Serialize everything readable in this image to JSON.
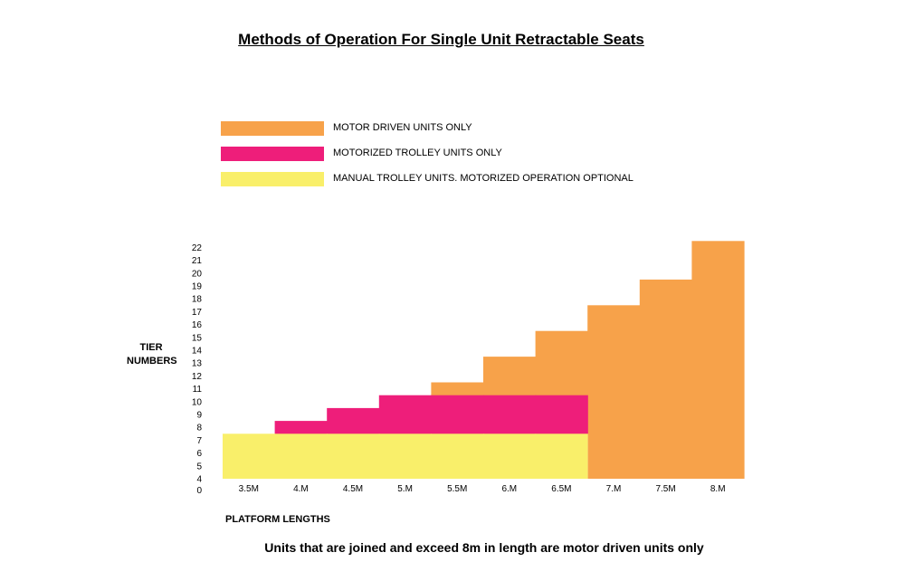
{
  "title": "Methods of Operation For Single Unit Retractable Seats",
  "legend": [
    {
      "label": "MOTOR DRIVEN UNITS ONLY",
      "color": "#F7A24A"
    },
    {
      "label": "MOTORIZED TROLLEY UNITS ONLY",
      "color": "#EE1E7A"
    },
    {
      "label": "MANUAL TROLLEY UNITS. MOTORIZED OPERATION OPTIONAL",
      "color": "#F9EF6A"
    }
  ],
  "footnote": "Units that are joined and exceed 8m in length are motor driven units only",
  "chart_data": {
    "type": "bar",
    "xlabel": "PLATFORM LENGTHS",
    "ylabel": "TIER NUMBERS",
    "ylim": [
      0,
      22
    ],
    "yticks": [
      "0",
      "4",
      "5",
      "6",
      "7",
      "8",
      "9",
      "10",
      "11",
      "12",
      "13",
      "14",
      "15",
      "16",
      "17",
      "18",
      "19",
      "20",
      "21",
      "22"
    ],
    "categories": [
      "3.5M",
      "4.M",
      "4.5M",
      "5.M",
      "5.5M",
      "6.M",
      "6.5M",
      "7.M",
      "7.5M",
      "8.M"
    ],
    "series": [
      {
        "name": "MANUAL TROLLEY UNITS. MOTORIZED OPERATION OPTIONAL",
        "color": "#F9EF6A",
        "values": [
          7,
          7,
          7,
          7,
          7,
          7,
          7,
          0,
          0,
          0
        ]
      },
      {
        "name": "MOTORIZED TROLLEY UNITS ONLY",
        "color": "#EE1E7A",
        "values": [
          0,
          8,
          9,
          10,
          10,
          10,
          10,
          0,
          0,
          0
        ]
      },
      {
        "name": "MOTOR DRIVEN UNITS ONLY",
        "color": "#F7A24A",
        "values": [
          0,
          0,
          0,
          0,
          11,
          13,
          15,
          17,
          19,
          22
        ]
      }
    ]
  }
}
